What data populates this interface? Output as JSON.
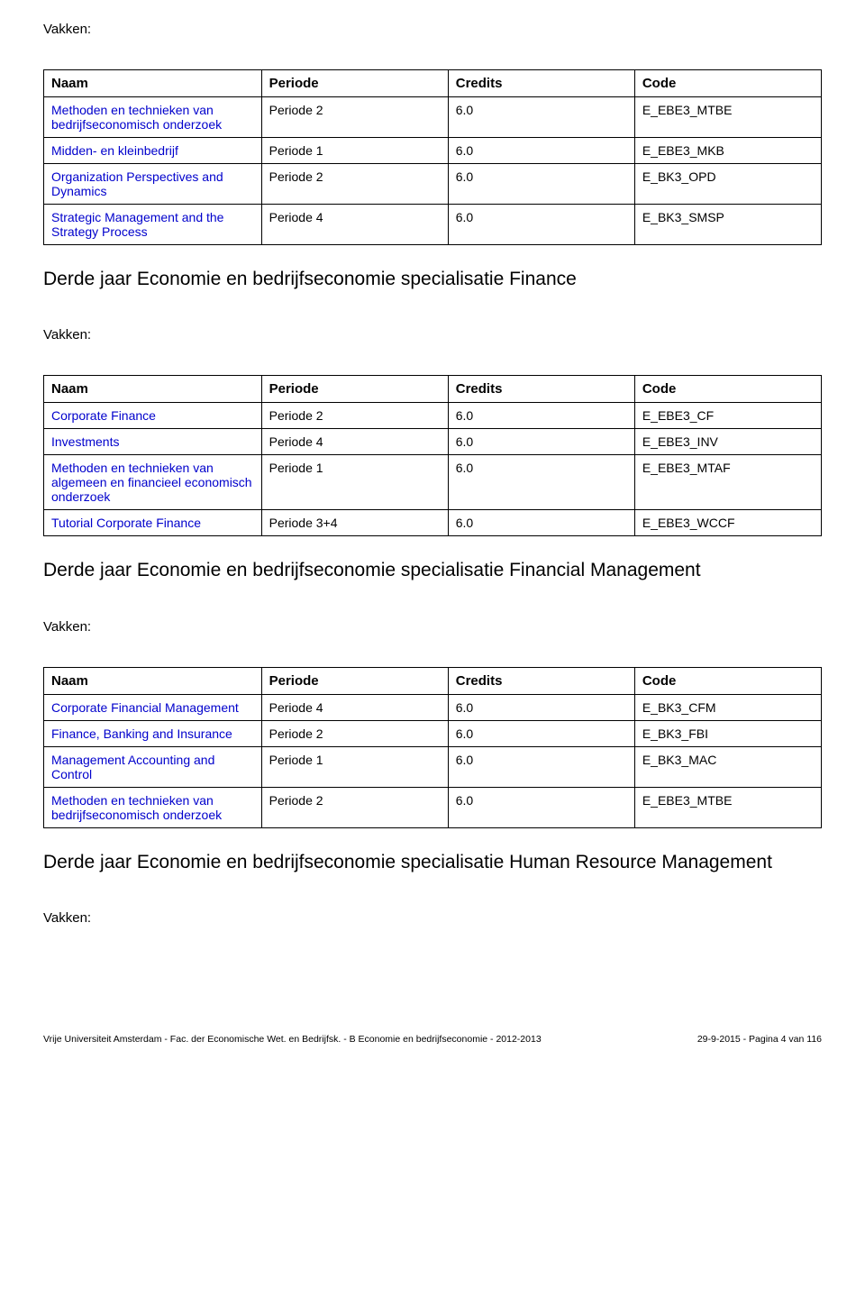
{
  "labels": {
    "vakken": "Vakken:",
    "naam": "Naam",
    "periode": "Periode",
    "credits": "Credits",
    "code": "Code"
  },
  "sections": [
    {
      "rows": [
        {
          "naam": "Methoden en technieken van bedrijfseconomisch onderzoek",
          "link": true,
          "periode": "Periode 2",
          "credits": "6.0",
          "code": "E_EBE3_MTBE"
        },
        {
          "naam": "Midden- en kleinbedrijf",
          "link": true,
          "periode": "Periode 1",
          "credits": "6.0",
          "code": "E_EBE3_MKB"
        },
        {
          "naam": "Organization Perspectives and Dynamics",
          "link": true,
          "periode": "Periode 2",
          "credits": "6.0",
          "code": "E_BK3_OPD"
        },
        {
          "naam": "Strategic Management and the Strategy Process",
          "link": true,
          "periode": "Periode 4",
          "credits": "6.0",
          "code": "E_BK3_SMSP"
        }
      ],
      "heading_after": "Derde jaar Economie en bedrijfseconomie specialisatie Finance"
    },
    {
      "rows": [
        {
          "naam": "Corporate Finance",
          "link": true,
          "periode": "Periode 2",
          "credits": "6.0",
          "code": "E_EBE3_CF"
        },
        {
          "naam": "Investments",
          "link": true,
          "periode": "Periode 4",
          "credits": "6.0",
          "code": "E_EBE3_INV"
        },
        {
          "naam": "Methoden en technieken van algemeen en financieel economisch onderzoek",
          "link": true,
          "periode": "Periode 1",
          "credits": "6.0",
          "code": "E_EBE3_MTAF"
        },
        {
          "naam": "Tutorial Corporate Finance",
          "link": true,
          "periode": "Periode 3+4",
          "credits": "6.0",
          "code": "E_EBE3_WCCF"
        }
      ],
      "heading_after": "Derde jaar Economie en bedrijfseconomie specialisatie Financial Management"
    },
    {
      "rows": [
        {
          "naam": "Corporate Financial Management",
          "link": true,
          "periode": "Periode 4",
          "credits": "6.0",
          "code": "E_BK3_CFM"
        },
        {
          "naam": "Finance, Banking and Insurance",
          "link": true,
          "periode": "Periode 2",
          "credits": "6.0",
          "code": "E_BK3_FBI"
        },
        {
          "naam": "Management Accounting and Control",
          "link": true,
          "periode": "Periode 1",
          "credits": "6.0",
          "code": "E_BK3_MAC"
        },
        {
          "naam": "Methoden en technieken van bedrijfseconomisch onderzoek",
          "link": true,
          "periode": "Periode 2",
          "credits": "6.0",
          "code": "E_EBE3_MTBE"
        }
      ],
      "heading_after": "Derde jaar Economie en bedrijfseconomie specialisatie Human Resource Management"
    }
  ],
  "footer": {
    "left": "Vrije Universiteit Amsterdam - Fac. der Economische Wet. en Bedrijfsk. - B Economie en bedrijfseconomie - 2012-2013",
    "right": "29-9-2015 - Pagina 4 van 116"
  },
  "colors": {
    "link": "#0000cc",
    "text": "#000000",
    "border": "#000000",
    "bg": "#ffffff"
  }
}
